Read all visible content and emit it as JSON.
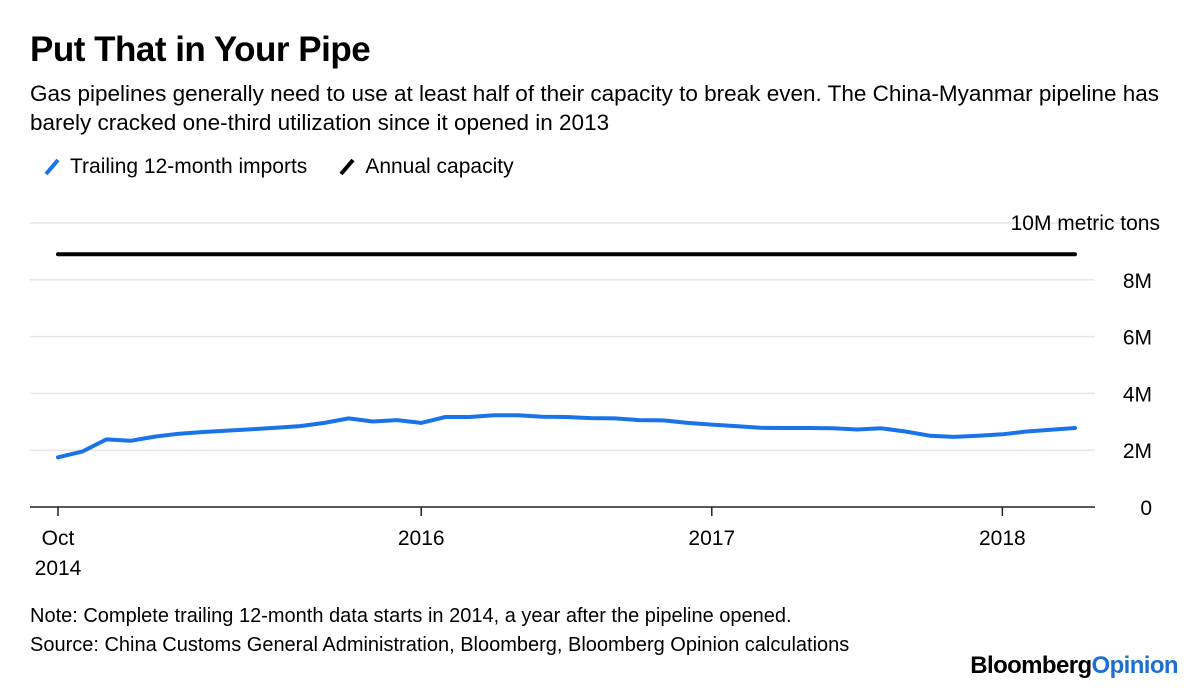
{
  "title": "Put That in Your Pipe",
  "subtitle": "Gas pipelines generally need to use at least half of their capacity to break even. The China-Myanmar pipeline has barely cracked one-third utilization since it opened in 2013",
  "legend": [
    {
      "label": "Trailing 12-month imports",
      "color": "#1a73e8"
    },
    {
      "label": "Annual capacity",
      "color": "#000000"
    }
  ],
  "note": "Note: Complete trailing 12-month data starts in 2014, a year after the pipeline opened.",
  "source": "Source: China Customs General Administration, Bloomberg, Bloomberg Opinion calculations",
  "brand": {
    "part1": "Bloomberg",
    "part2": "Opinion",
    "color2": "#1f6fd1"
  },
  "chart_data": {
    "type": "line",
    "y_axis": {
      "min": 0,
      "max": 10000000,
      "ticks": [
        {
          "value": 0,
          "label": "0"
        },
        {
          "value": 2000000,
          "label": "2M"
        },
        {
          "value": 4000000,
          "label": "4M"
        },
        {
          "value": 6000000,
          "label": "6M"
        },
        {
          "value": 8000000,
          "label": "8M"
        },
        {
          "value": 10000000,
          "label": "10M metric tons"
        }
      ],
      "grid": true,
      "position": "right"
    },
    "x_axis": {
      "start": "2014-10",
      "end": "2018-04",
      "ticks": [
        {
          "date": "2014-10",
          "label": "Oct",
          "label2": "2014"
        },
        {
          "date": "2016-01",
          "label": "2016"
        },
        {
          "date": "2017-01",
          "label": "2017"
        },
        {
          "date": "2018-01",
          "label": "2018"
        }
      ]
    },
    "series": [
      {
        "name": "Trailing 12-month imports",
        "color": "#1a73e8",
        "x": [
          "2014-10",
          "2014-11",
          "2014-12",
          "2015-01",
          "2015-02",
          "2015-03",
          "2015-04",
          "2015-05",
          "2015-06",
          "2015-07",
          "2015-08",
          "2015-09",
          "2015-10",
          "2015-11",
          "2015-12",
          "2016-01",
          "2016-02",
          "2016-03",
          "2016-04",
          "2016-05",
          "2016-06",
          "2016-07",
          "2016-08",
          "2016-09",
          "2016-10",
          "2016-11",
          "2016-12",
          "2017-01",
          "2017-02",
          "2017-03",
          "2017-04",
          "2017-05",
          "2017-06",
          "2017-07",
          "2017-08",
          "2017-09",
          "2017-10",
          "2017-11",
          "2017-12",
          "2018-01",
          "2018-02",
          "2018-03",
          "2018-04"
        ],
        "values": [
          1750000,
          1950000,
          2380000,
          2330000,
          2480000,
          2580000,
          2640000,
          2690000,
          2740000,
          2790000,
          2850000,
          2960000,
          3120000,
          3010000,
          3060000,
          2960000,
          3170000,
          3170000,
          3230000,
          3230000,
          3180000,
          3170000,
          3130000,
          3120000,
          3060000,
          3050000,
          2960000,
          2900000,
          2850000,
          2790000,
          2780000,
          2780000,
          2770000,
          2730000,
          2770000,
          2660000,
          2510000,
          2470000,
          2510000,
          2560000,
          2660000,
          2720000,
          2780000
        ]
      },
      {
        "name": "Annual capacity",
        "color": "#000000",
        "x": [
          "2014-10",
          "2018-04"
        ],
        "values": [
          8900000,
          8900000
        ]
      }
    ]
  }
}
